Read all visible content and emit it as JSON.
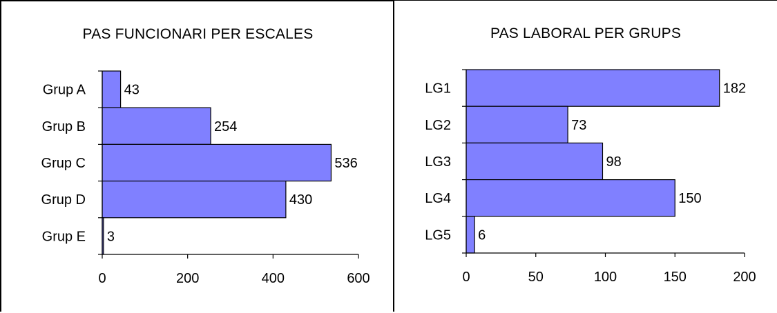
{
  "chart_data": [
    {
      "type": "bar",
      "orientation": "horizontal",
      "title": "PAS FUNCIONARI PER ESCALES",
      "categories": [
        "Grup A",
        "Grup B",
        "Grup C",
        "Grup D",
        "Grup E"
      ],
      "values": [
        43,
        254,
        536,
        430,
        3
      ],
      "xlim": [
        0,
        600
      ],
      "xticks": [
        0,
        200,
        400,
        600
      ],
      "xlabel": "",
      "ylabel": "",
      "bar_color": "#8080ff",
      "grid": false,
      "legend": "none"
    },
    {
      "type": "bar",
      "orientation": "horizontal",
      "title": "PAS LABORAL PER GRUPS",
      "categories": [
        "LG1",
        "LG2",
        "LG3",
        "LG4",
        "LG5"
      ],
      "values": [
        182,
        73,
        98,
        150,
        6
      ],
      "xlim": [
        0,
        200
      ],
      "xticks": [
        0,
        50,
        100,
        150,
        200
      ],
      "xlabel": "",
      "ylabel": "",
      "bar_color": "#8080ff",
      "grid": false,
      "legend": "none"
    }
  ]
}
